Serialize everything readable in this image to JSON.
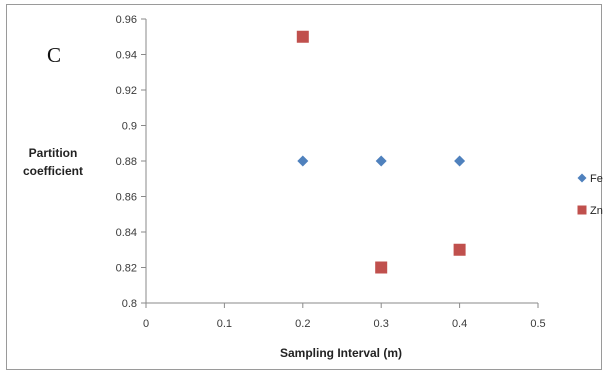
{
  "chart_data": {
    "type": "scatter",
    "panel_label": "C",
    "xlabel": "Sampling Interval (m)",
    "ylabel": "Partition coefficient",
    "ylabel_lines": [
      "Partition",
      "coefficient"
    ],
    "xlim": [
      0,
      0.5
    ],
    "ylim": [
      0.8,
      0.96
    ],
    "xticks": [
      "0",
      "0.1",
      "0.2",
      "0.3",
      "0.4",
      "0.5"
    ],
    "xtick_values": [
      0,
      0.1,
      0.2,
      0.3,
      0.4,
      0.5
    ],
    "yticks": [
      "0.8",
      "0.82",
      "0.84",
      "0.86",
      "0.88",
      "0.9",
      "0.92",
      "0.94",
      "0.96"
    ],
    "ytick_values": [
      0.8,
      0.82,
      0.84,
      0.86,
      0.88,
      0.9,
      0.92,
      0.94,
      0.96
    ],
    "grid": false,
    "legend_position": "right",
    "series": [
      {
        "name": "Fe",
        "marker": "diamond",
        "color": "#4f81bd",
        "points": [
          {
            "x": 0.2,
            "y": 0.88
          },
          {
            "x": 0.3,
            "y": 0.88
          },
          {
            "x": 0.4,
            "y": 0.88
          }
        ]
      },
      {
        "name": "Zn",
        "marker": "square",
        "color": "#c0504d",
        "points": [
          {
            "x": 0.2,
            "y": 0.95
          },
          {
            "x": 0.3,
            "y": 0.82
          },
          {
            "x": 0.4,
            "y": 0.83
          }
        ]
      }
    ]
  }
}
